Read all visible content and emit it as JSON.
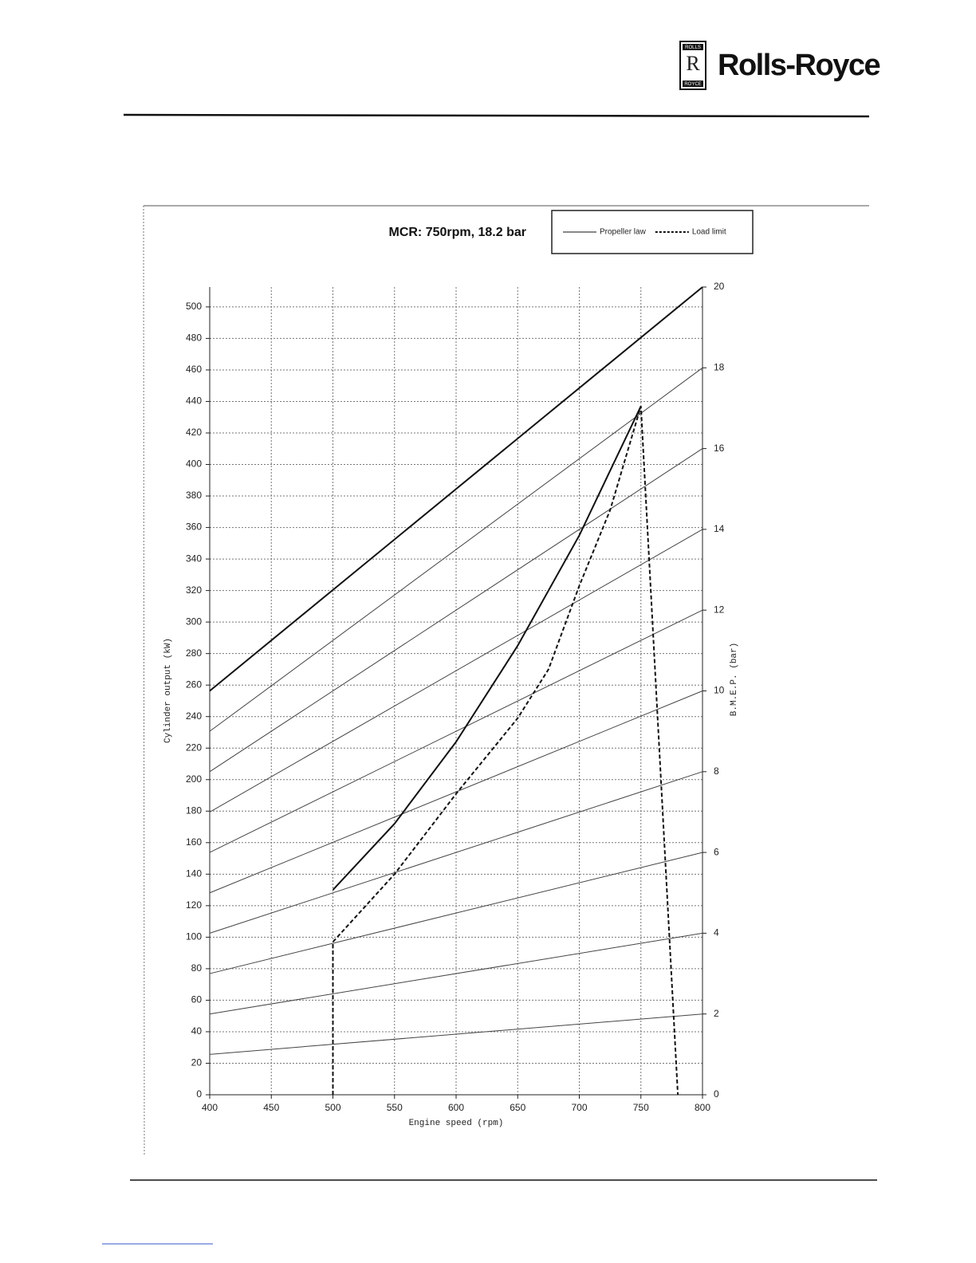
{
  "header": {
    "brand": "Rolls-Royce",
    "badge_top": "ROLLS",
    "badge_mark": "R",
    "badge_bottom": "ROYCE"
  },
  "chart_data": {
    "type": "line",
    "title": "MCR: 750rpm, 18.2 bar",
    "xlabel": "Engine speed (rpm)",
    "ylabel": "Cylinder output (kW)",
    "y2label": "B.M.E.P. (bar)",
    "xlim": [
      400,
      800
    ],
    "xticks": [
      400,
      450,
      500,
      550,
      600,
      650,
      700,
      750,
      800
    ],
    "ylim": [
      0,
      512.6
    ],
    "yticks": [
      0,
      20,
      40,
      60,
      80,
      100,
      120,
      140,
      160,
      180,
      200,
      220,
      240,
      260,
      280,
      300,
      320,
      340,
      360,
      380,
      400,
      420,
      440,
      460,
      480,
      500
    ],
    "y2lim": [
      0,
      20
    ],
    "y2ticks": [
      0,
      2,
      4,
      6,
      8,
      10,
      12,
      14,
      16,
      18,
      20
    ],
    "grid": true,
    "legend": "top-right",
    "series": [
      {
        "name": "Propeller law",
        "color": "#111111",
        "style": "solid",
        "x": [
          500,
          550,
          600,
          650,
          700,
          750
        ],
        "values": [
          130,
          172,
          224,
          285,
          355,
          437
        ]
      },
      {
        "name": "Load limit",
        "color": "#111111",
        "style": "dashed",
        "x": [
          500,
          500,
          550,
          600,
          650,
          675,
          700,
          725,
          750,
          780
        ],
        "values": [
          0,
          97,
          140,
          191,
          239,
          270,
          323,
          371,
          437,
          0
        ]
      }
    ],
    "bmep_lines": [
      {
        "axis": "y2",
        "color": "#444444",
        "x": [
          400,
          800
        ],
        "values": [
          1,
          2
        ]
      },
      {
        "axis": "y2",
        "color": "#444444",
        "x": [
          400,
          800
        ],
        "values": [
          2,
          4
        ]
      },
      {
        "axis": "y2",
        "color": "#444444",
        "x": [
          400,
          800
        ],
        "values": [
          3,
          6
        ]
      },
      {
        "axis": "y2",
        "color": "#444444",
        "x": [
          400,
          800
        ],
        "values": [
          4,
          8
        ]
      },
      {
        "axis": "y2",
        "color": "#444444",
        "x": [
          400,
          800
        ],
        "values": [
          5,
          10
        ]
      },
      {
        "axis": "y2",
        "color": "#444444",
        "x": [
          400,
          800
        ],
        "values": [
          6,
          12
        ]
      },
      {
        "axis": "y2",
        "color": "#444444",
        "x": [
          400,
          800
        ],
        "values": [
          7,
          14
        ]
      },
      {
        "axis": "y2",
        "color": "#444444",
        "x": [
          400,
          800
        ],
        "values": [
          8,
          16
        ]
      },
      {
        "axis": "y2",
        "color": "#444444",
        "x": [
          400,
          800
        ],
        "values": [
          9,
          18
        ]
      },
      {
        "axis": "y2",
        "color": "#111111",
        "x": [
          400,
          800
        ],
        "values": [
          10,
          20
        ]
      }
    ]
  }
}
